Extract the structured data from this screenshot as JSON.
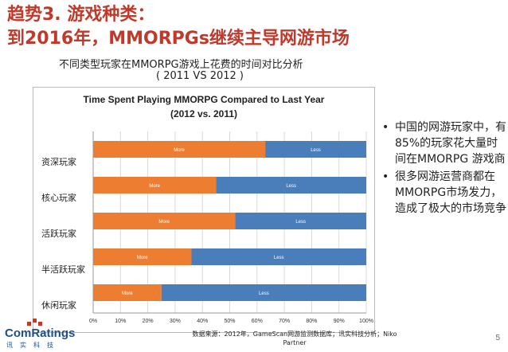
{
  "slide": {
    "title_line1": "趋势3. 游戏种类：",
    "title_line2": "到2016年，MMORPGs继续主导网游市场",
    "subtitle_line1": "不同类型玩家在MMORPG游戏上花费的时间对比分析",
    "subtitle_line2": "( 2011 VS 2012 )",
    "bullets": [
      "中国的网游玩家中，有85%的玩家花大量时间在MMORPG 游戏商",
      "很多网游运营商都在MMORPG市场发力，造成了极大的市场竞争"
    ],
    "source": "数据来源：2012年，GameScan网游监测数据库；讯实科技分析；Niko Partner",
    "page_number": "5",
    "logo": {
      "word": "ComRatings",
      "sub": "讯实科技"
    }
  },
  "chart_data": {
    "type": "bar",
    "orientation": "horizontal",
    "stacked": true,
    "title_line1": "Time Spent Playing MMORPG Compared to Last Year",
    "title_line2": "(2012 vs. 2011)",
    "categories": [
      "资深玩家",
      "核心玩家",
      "活跃玩家",
      "半活跃玩家",
      "休闲玩家"
    ],
    "series": [
      {
        "name": "More",
        "color": "#ed7d31",
        "values": [
          63,
          45,
          52,
          36,
          25
        ]
      },
      {
        "name": "Less",
        "color": "#4a7ebb",
        "values": [
          37,
          55,
          48,
          64,
          75
        ]
      }
    ],
    "xlim": [
      0,
      100
    ],
    "xticks": [
      "0%",
      "10%",
      "20%",
      "30%",
      "40%",
      "50%",
      "60%",
      "70%",
      "80%",
      "90%",
      "100%"
    ],
    "grid": true
  }
}
